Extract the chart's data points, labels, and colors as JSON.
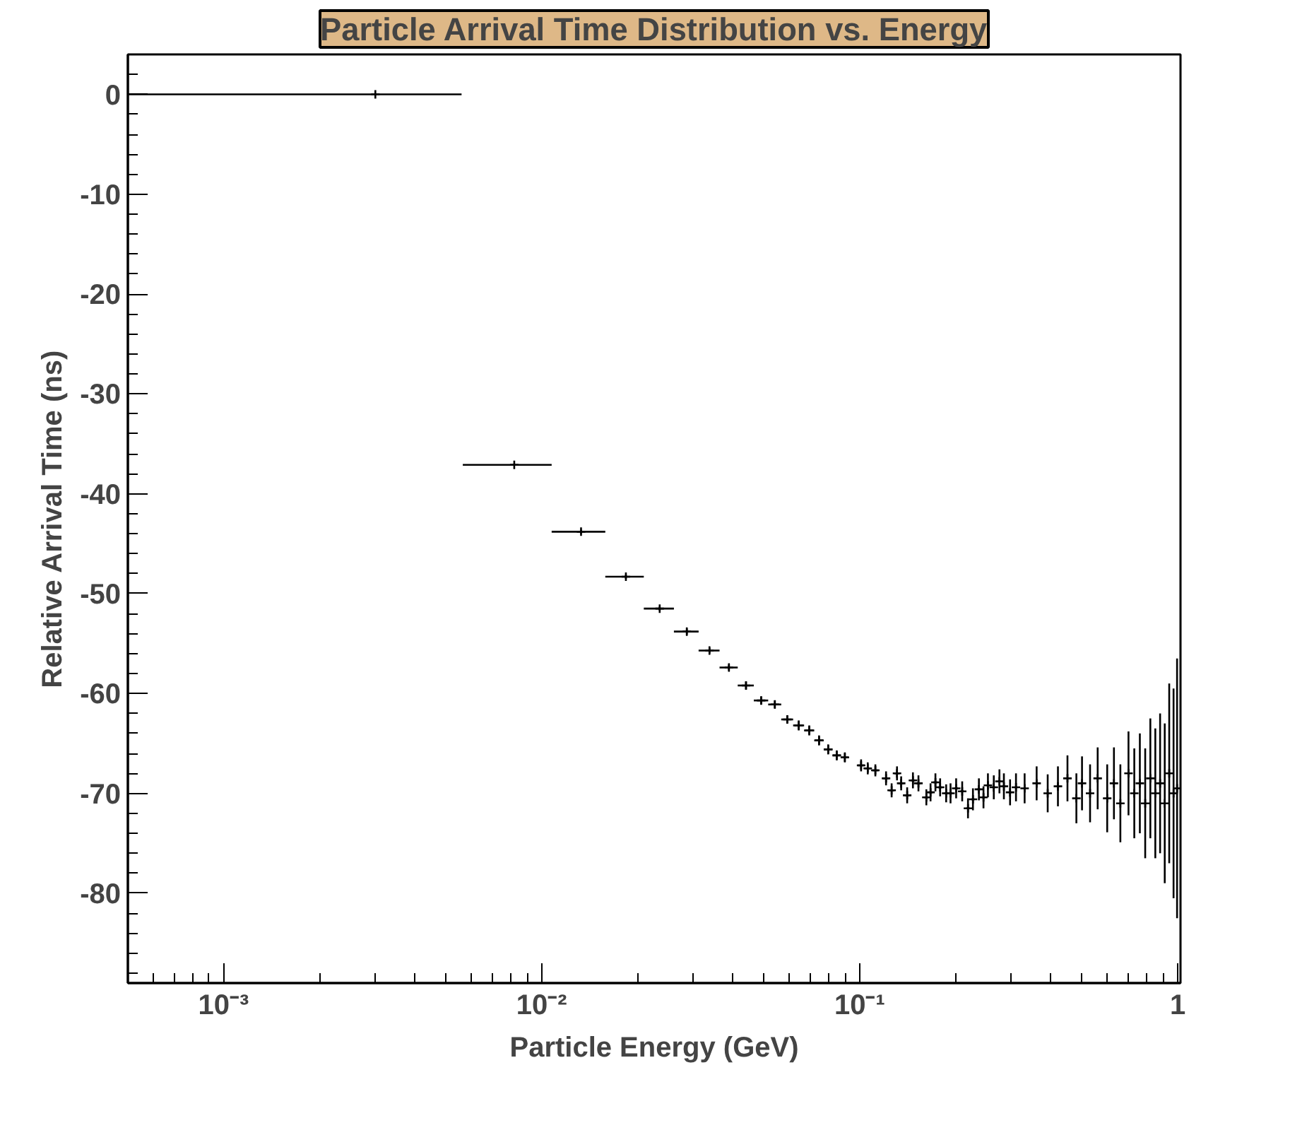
{
  "chart_data": {
    "type": "scatter",
    "title": "Particle Arrival Time Distribution vs. Energy",
    "xlabel": "Particle Energy (GeV)",
    "ylabel": "Relative Arrival Time (ns)",
    "log": "x",
    "grid": false,
    "marker": "cross",
    "xlim": [
      0.0005,
      1.02
    ],
    "ylim": [
      -89,
      4
    ],
    "xticks": [
      {
        "value": 0.001,
        "label": "10⁻³"
      },
      {
        "value": 0.01,
        "label": "10⁻²"
      },
      {
        "value": 0.1,
        "label": "10⁻¹"
      },
      1
    ],
    "yticks": [
      -80,
      -70,
      -60,
      -50,
      -40,
      -30,
      -20,
      -10,
      0
    ],
    "series": [
      {
        "color": "#000000",
        "x": [
          0.003,
          0.0082,
          0.0133,
          0.0184,
          0.0235,
          0.0286,
          0.0337,
          0.0388,
          0.0439,
          0.049,
          0.0541,
          0.0592,
          0.0643,
          0.0694,
          0.0745,
          0.0796,
          0.0847,
          0.0898,
          0.101,
          0.106,
          0.112,
          0.121,
          0.126,
          0.131,
          0.135,
          0.141,
          0.147,
          0.153,
          0.162,
          0.167,
          0.173,
          0.179,
          0.187,
          0.193,
          0.201,
          0.21,
          0.219,
          0.227,
          0.237,
          0.245,
          0.253,
          0.264,
          0.275,
          0.284,
          0.297,
          0.31,
          0.33,
          0.36,
          0.39,
          0.42,
          0.45,
          0.48,
          0.5,
          0.53,
          0.56,
          0.6,
          0.63,
          0.66,
          0.7,
          0.73,
          0.76,
          0.79,
          0.82,
          0.85,
          0.88,
          0.91,
          0.94,
          0.97,
          0.995
        ],
        "values": [
          0,
          -37.1,
          -43.8,
          -48.3,
          -51.5,
          -53.8,
          -55.7,
          -57.4,
          -59.2,
          -60.7,
          -61.1,
          -62.6,
          -63.2,
          -63.7,
          -64.7,
          -65.6,
          -66.2,
          -66.4,
          -67.2,
          -67.5,
          -67.7,
          -68.5,
          -69.7,
          -68.0,
          -69.0,
          -70.2,
          -68.7,
          -69.0,
          -70.4,
          -69.9,
          -68.9,
          -69.4,
          -70.0,
          -70.0,
          -69.5,
          -69.8,
          -71.5,
          -70.6,
          -69.6,
          -70.4,
          -69.2,
          -69.4,
          -68.8,
          -69.3,
          -69.9,
          -69.4,
          -69.5,
          -69.0,
          -70.0,
          -69.3,
          -68.5,
          -70.5,
          -69.0,
          -70.0,
          -68.5,
          -70.5,
          -69.0,
          -71.0,
          -68.0,
          -70.0,
          -69.0,
          -71.0,
          -68.5,
          -70.0,
          -69.0,
          -71.0,
          -68.0,
          -70.0,
          -69.5
        ],
        "errors": [
          null,
          0.1,
          0.2,
          0.2,
          0.2,
          0.3,
          0.3,
          0.3,
          0.4,
          0.4,
          0.4,
          0.4,
          0.5,
          0.5,
          0.5,
          0.5,
          0.5,
          0.5,
          0.6,
          0.6,
          0.6,
          0.7,
          0.7,
          0.7,
          0.7,
          0.8,
          0.8,
          0.8,
          0.8,
          0.9,
          0.9,
          0.9,
          0.9,
          1.0,
          1.0,
          1.0,
          1.0,
          1.1,
          1.1,
          1.1,
          1.2,
          1.2,
          1.2,
          1.3,
          1.3,
          1.4,
          1.5,
          1.7,
          1.9,
          2.0,
          2.3,
          2.5,
          2.7,
          2.9,
          3.1,
          3.4,
          3.6,
          3.9,
          4.2,
          4.5,
          5.0,
          5.5,
          6.0,
          6.5,
          7.0,
          8.0,
          9.0,
          10.5,
          13.0
        ],
        "xerrors": [
          [
            0.0005,
            0.0056
          ],
          0.00255,
          0.00255,
          0.00255,
          0.00255,
          0.00255,
          0.00255,
          0.00255,
          0.00255,
          0.00255,
          0.00255,
          0.00255,
          0.00255,
          0.00255,
          0.00255,
          0.00255,
          0.00255,
          0.00255,
          0.00255,
          0.00255,
          0.00255,
          0.00255,
          0.00255,
          0.00255,
          0.00255,
          0.00255,
          0.00255,
          0.00255,
          0.00255,
          0.00255,
          0.00255,
          0.00255,
          0.00255,
          0.00255,
          0.00255,
          0.00255,
          0.00255,
          0.00255,
          0.00255,
          0.00255,
          0.00255,
          0.00255,
          0.00255,
          0.00255,
          0.00255,
          0.00255,
          0.00255,
          0.00255,
          0.00255,
          0.00255,
          0.00255,
          0.00255,
          0.00255,
          0.00255,
          null,
          null,
          null,
          null,
          null,
          null,
          null,
          null,
          null,
          null,
          null,
          null,
          null,
          null,
          null
        ]
      }
    ]
  }
}
